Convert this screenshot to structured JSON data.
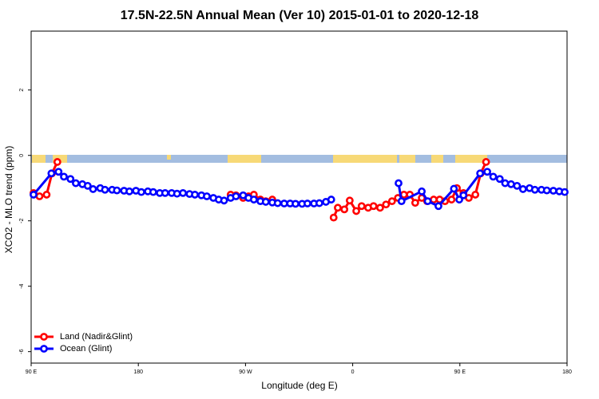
{
  "chart_data": {
    "type": "line",
    "title": "17.5N-22.5N Annual Mean (Ver 10)   2015-01-01 to 2020-12-18",
    "x_label": "Longitude (deg E)",
    "y_label": "XCO2 - MLO trend (ppm)",
    "xlim": [
      90,
      540
    ],
    "ylim": [
      -6.35,
      3.8
    ],
    "xticks": [
      {
        "value": 90,
        "label": "90 E"
      },
      180,
      {
        "value": 270,
        "label": "90 W"
      },
      {
        "value": 360,
        "label": "0"
      },
      {
        "value": 450,
        "label": "90 E"
      },
      {
        "value": 540,
        "label": "180"
      }
    ],
    "yticks": [
      -6,
      -4,
      -2,
      0,
      2
    ],
    "grid": false,
    "legend": "bottom-left",
    "series": [
      {
        "name": "Land (Nadir&Glint)",
        "color": "#ff0000",
        "x": [
          92,
          97,
          103,
          107.5,
          112,
          null,
          257.5,
          262,
          268,
          272.5,
          277,
          282.5,
          287,
          292.5,
          null,
          344,
          347.5,
          353,
          357.5,
          363,
          367.5,
          373,
          377.5,
          383,
          388,
          393,
          398,
          403,
          408,
          412.5,
          418,
          422.5,
          428,
          433,
          437.5,
          443,
          447.5,
          453,
          457.5,
          463,
          467.5,
          472
        ],
        "values": [
          -1.15,
          -1.25,
          -1.2,
          -0.55,
          -0.2,
          null,
          -1.2,
          -1.22,
          -1.3,
          -1.25,
          -1.2,
          -1.35,
          -1.4,
          -1.35,
          null,
          -1.9,
          -1.6,
          -1.65,
          -1.38,
          -1.7,
          -1.55,
          -1.6,
          -1.55,
          -1.6,
          -1.5,
          -1.4,
          -1.3,
          -1.2,
          -1.2,
          -1.45,
          -1.3,
          -1.4,
          -1.35,
          -1.35,
          -1.4,
          -1.35,
          -1.0,
          -1.15,
          -1.3,
          -1.2,
          -0.55,
          -0.2
        ]
      },
      {
        "name": "Ocean (Glint)",
        "color": "#0000ff",
        "x": [
          92,
          107,
          113,
          117.5,
          123,
          127.5,
          133,
          137.5,
          142,
          148,
          152,
          158,
          162,
          168,
          172.5,
          178,
          182.5,
          188,
          192.5,
          198,
          202.5,
          208,
          212.5,
          217.5,
          223,
          227.5,
          233,
          237.5,
          243,
          247.5,
          252,
          257.5,
          262,
          268,
          272.5,
          277,
          282.5,
          287,
          292.5,
          297,
          302.5,
          307.5,
          312,
          317.5,
          322,
          327.5,
          332,
          337.5,
          342,
          null,
          398.5,
          401,
          418,
          423,
          432,
          445,
          449.5,
          453,
          467,
          473,
          478,
          483.5,
          488,
          493,
          498,
          503,
          508.5,
          513,
          518.5,
          523,
          528.5,
          533.5,
          538
        ],
        "values": [
          -1.2,
          -0.55,
          -0.5,
          -0.65,
          -0.72,
          -0.85,
          -0.88,
          -0.93,
          -1.03,
          -1.0,
          -1.05,
          -1.05,
          -1.07,
          -1.08,
          -1.1,
          -1.08,
          -1.12,
          -1.1,
          -1.12,
          -1.15,
          -1.15,
          -1.15,
          -1.17,
          -1.15,
          -1.18,
          -1.2,
          -1.22,
          -1.25,
          -1.3,
          -1.35,
          -1.38,
          -1.3,
          -1.25,
          -1.22,
          -1.3,
          -1.35,
          -1.4,
          -1.42,
          -1.44,
          -1.46,
          -1.47,
          -1.47,
          -1.48,
          -1.48,
          -1.47,
          -1.47,
          -1.46,
          -1.42,
          -1.35,
          null,
          -0.85,
          -1.4,
          -1.1,
          -1.4,
          -1.55,
          -1.02,
          -1.35,
          -1.22,
          -0.55,
          -0.5,
          -0.65,
          -0.72,
          -0.85,
          -0.88,
          -0.93,
          -1.03,
          -1.0,
          -1.05,
          -1.05,
          -1.07,
          -1.08,
          -1.1,
          -1.12
        ]
      }
    ]
  }
}
